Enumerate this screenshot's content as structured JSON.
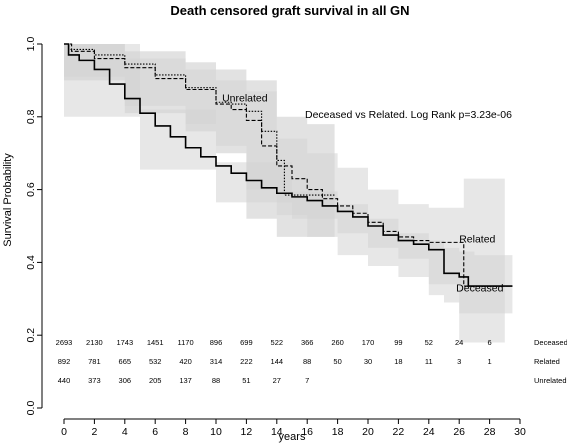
{
  "chart_data": {
    "type": "line",
    "title": "Death censored graft survival in all GN",
    "xlabel": "years",
    "ylabel": "Survival Probability",
    "xlim": [
      0,
      30
    ],
    "ylim": [
      0,
      1.0
    ],
    "xticks": [
      "0",
      "2",
      "4",
      "6",
      "8",
      "10",
      "12",
      "14",
      "16",
      "18",
      "20",
      "22",
      "24",
      "26",
      "28",
      "30"
    ],
    "yticks": [
      "0.0",
      "0.2",
      "0.4",
      "0.6",
      "0.8",
      "1.0"
    ],
    "annotation": "Deceased vs Related. Log Rank p=3.23e-06",
    "series": [
      {
        "name": "Deceased",
        "line_style": "solid",
        "points": [
          [
            0,
            1.0
          ],
          [
            0.3,
            0.97
          ],
          [
            1,
            0.955
          ],
          [
            2,
            0.93
          ],
          [
            3,
            0.89
          ],
          [
            4,
            0.85
          ],
          [
            5,
            0.81
          ],
          [
            6,
            0.775
          ],
          [
            7,
            0.745
          ],
          [
            8,
            0.715
          ],
          [
            9,
            0.69
          ],
          [
            10,
            0.665
          ],
          [
            11,
            0.645
          ],
          [
            12,
            0.625
          ],
          [
            13,
            0.605
          ],
          [
            14,
            0.59
          ],
          [
            15,
            0.58
          ],
          [
            16,
            0.57
          ],
          [
            17,
            0.555
          ],
          [
            18,
            0.54
          ],
          [
            19,
            0.525
          ],
          [
            20,
            0.5
          ],
          [
            21,
            0.475
          ],
          [
            22,
            0.46
          ],
          [
            23,
            0.45
          ],
          [
            24,
            0.435
          ],
          [
            25,
            0.37
          ],
          [
            26,
            0.36
          ],
          [
            26.6,
            0.335
          ],
          [
            29.5,
            0.335
          ]
        ],
        "ci_upper": [
          [
            0,
            1.0
          ],
          [
            5,
            0.82
          ],
          [
            10,
            0.675
          ],
          [
            15,
            0.595
          ],
          [
            18,
            0.56
          ],
          [
            20,
            0.52
          ],
          [
            22,
            0.48
          ],
          [
            24,
            0.46
          ],
          [
            25,
            0.44
          ],
          [
            26,
            0.43
          ],
          [
            27,
            0.42
          ],
          [
            29.5,
            0.42
          ]
        ],
        "ci_lower": [
          [
            0,
            1.0
          ],
          [
            5,
            0.8
          ],
          [
            10,
            0.655
          ],
          [
            15,
            0.565
          ],
          [
            18,
            0.52
          ],
          [
            20,
            0.48
          ],
          [
            22,
            0.44
          ],
          [
            24,
            0.41
          ],
          [
            25,
            0.31
          ],
          [
            26,
            0.29
          ],
          [
            27,
            0.26
          ],
          [
            29.5,
            0.26
          ]
        ]
      },
      {
        "name": "Related",
        "line_style": "dashed",
        "points": [
          [
            0,
            1.0
          ],
          [
            0.5,
            0.98
          ],
          [
            2,
            0.96
          ],
          [
            4,
            0.935
          ],
          [
            6,
            0.905
          ],
          [
            8,
            0.875
          ],
          [
            10,
            0.835
          ],
          [
            11,
            0.82
          ],
          [
            12,
            0.79
          ],
          [
            13,
            0.72
          ],
          [
            14,
            0.665
          ],
          [
            15,
            0.63
          ],
          [
            16,
            0.6
          ],
          [
            17,
            0.575
          ],
          [
            18,
            0.555
          ],
          [
            19,
            0.535
          ],
          [
            20,
            0.51
          ],
          [
            21,
            0.485
          ],
          [
            22,
            0.47
          ],
          [
            23,
            0.46
          ],
          [
            24,
            0.455
          ],
          [
            25,
            0.455
          ],
          [
            26,
            0.455
          ],
          [
            26.3,
            0.335
          ],
          [
            29.5,
            0.335
          ]
        ],
        "ci_upper": [
          [
            0,
            1.0
          ],
          [
            4,
            0.96
          ],
          [
            8,
            0.93
          ],
          [
            10,
            0.9
          ],
          [
            12,
            0.87
          ],
          [
            14,
            0.74
          ],
          [
            16,
            0.7
          ],
          [
            18,
            0.66
          ],
          [
            20,
            0.6
          ],
          [
            22,
            0.56
          ],
          [
            24,
            0.55
          ],
          [
            26,
            0.55
          ],
          [
            26.3,
            0.63
          ],
          [
            29,
            0.63
          ]
        ],
        "ci_lower": [
          [
            0,
            1.0
          ],
          [
            4,
            0.91
          ],
          [
            8,
            0.83
          ],
          [
            10,
            0.78
          ],
          [
            12,
            0.72
          ],
          [
            14,
            0.6
          ],
          [
            16,
            0.53
          ],
          [
            18,
            0.47
          ],
          [
            20,
            0.42
          ],
          [
            22,
            0.39
          ],
          [
            24,
            0.36
          ],
          [
            26,
            0.34
          ],
          [
            26.3,
            0.18
          ],
          [
            29,
            0.18
          ]
        ]
      },
      {
        "name": "Unrelated",
        "line_style": "dotted",
        "points": [
          [
            0,
            1.0
          ],
          [
            0.3,
            0.985
          ],
          [
            2,
            0.97
          ],
          [
            4,
            0.945
          ],
          [
            6,
            0.915
          ],
          [
            8,
            0.88
          ],
          [
            10,
            0.84
          ],
          [
            11,
            0.835
          ],
          [
            12,
            0.815
          ],
          [
            13,
            0.76
          ],
          [
            14,
            0.68
          ],
          [
            14.5,
            0.585
          ],
          [
            17,
            0.585
          ],
          [
            17.8,
            0.585
          ]
        ],
        "ci_upper": [
          [
            0,
            1.0
          ],
          [
            4,
            0.98
          ],
          [
            8,
            0.95
          ],
          [
            10,
            0.93
          ],
          [
            12,
            0.9
          ],
          [
            14,
            0.8
          ],
          [
            16,
            0.78
          ],
          [
            17.8,
            0.78
          ]
        ],
        "ci_lower": [
          [
            0,
            1.0
          ],
          [
            4,
            0.9
          ],
          [
            8,
            0.81
          ],
          [
            10,
            0.76
          ],
          [
            12,
            0.7
          ],
          [
            14,
            0.52
          ],
          [
            16,
            0.47
          ],
          [
            17.8,
            0.47
          ]
        ]
      }
    ],
    "series_labels": [
      {
        "text": "Unrelated",
        "x": 10.4,
        "y": 0.842
      },
      {
        "text": "Related",
        "x": 26,
        "y": 0.455
      },
      {
        "text": "Deceased",
        "x": 25.8,
        "y": 0.32
      }
    ],
    "risk_table": {
      "times": [
        0,
        2,
        4,
        6,
        8,
        10,
        12,
        14,
        16,
        18,
        20,
        22,
        24,
        26,
        28
      ],
      "rows": [
        {
          "label": "Deceased",
          "counts": [
            "2693",
            "2130",
            "1743",
            "1451",
            "1170",
            "896",
            "699",
            "522",
            "366",
            "260",
            "170",
            "99",
            "52",
            "24",
            "6"
          ]
        },
        {
          "label": "Related",
          "counts": [
            "892",
            "781",
            "665",
            "532",
            "420",
            "314",
            "222",
            "144",
            "88",
            "50",
            "30",
            "18",
            "11",
            "3",
            "1"
          ]
        },
        {
          "label": "Unrelated",
          "counts": [
            "440",
            "373",
            "306",
            "205",
            "137",
            "88",
            "51",
            "27",
            "7",
            "",
            "",
            "",
            "",
            "",
            ""
          ]
        }
      ]
    },
    "colors": {
      "line": "#000000",
      "ci_fill": "#d3d3d3",
      "ci_fill_dark": "#c2c2c2"
    }
  }
}
